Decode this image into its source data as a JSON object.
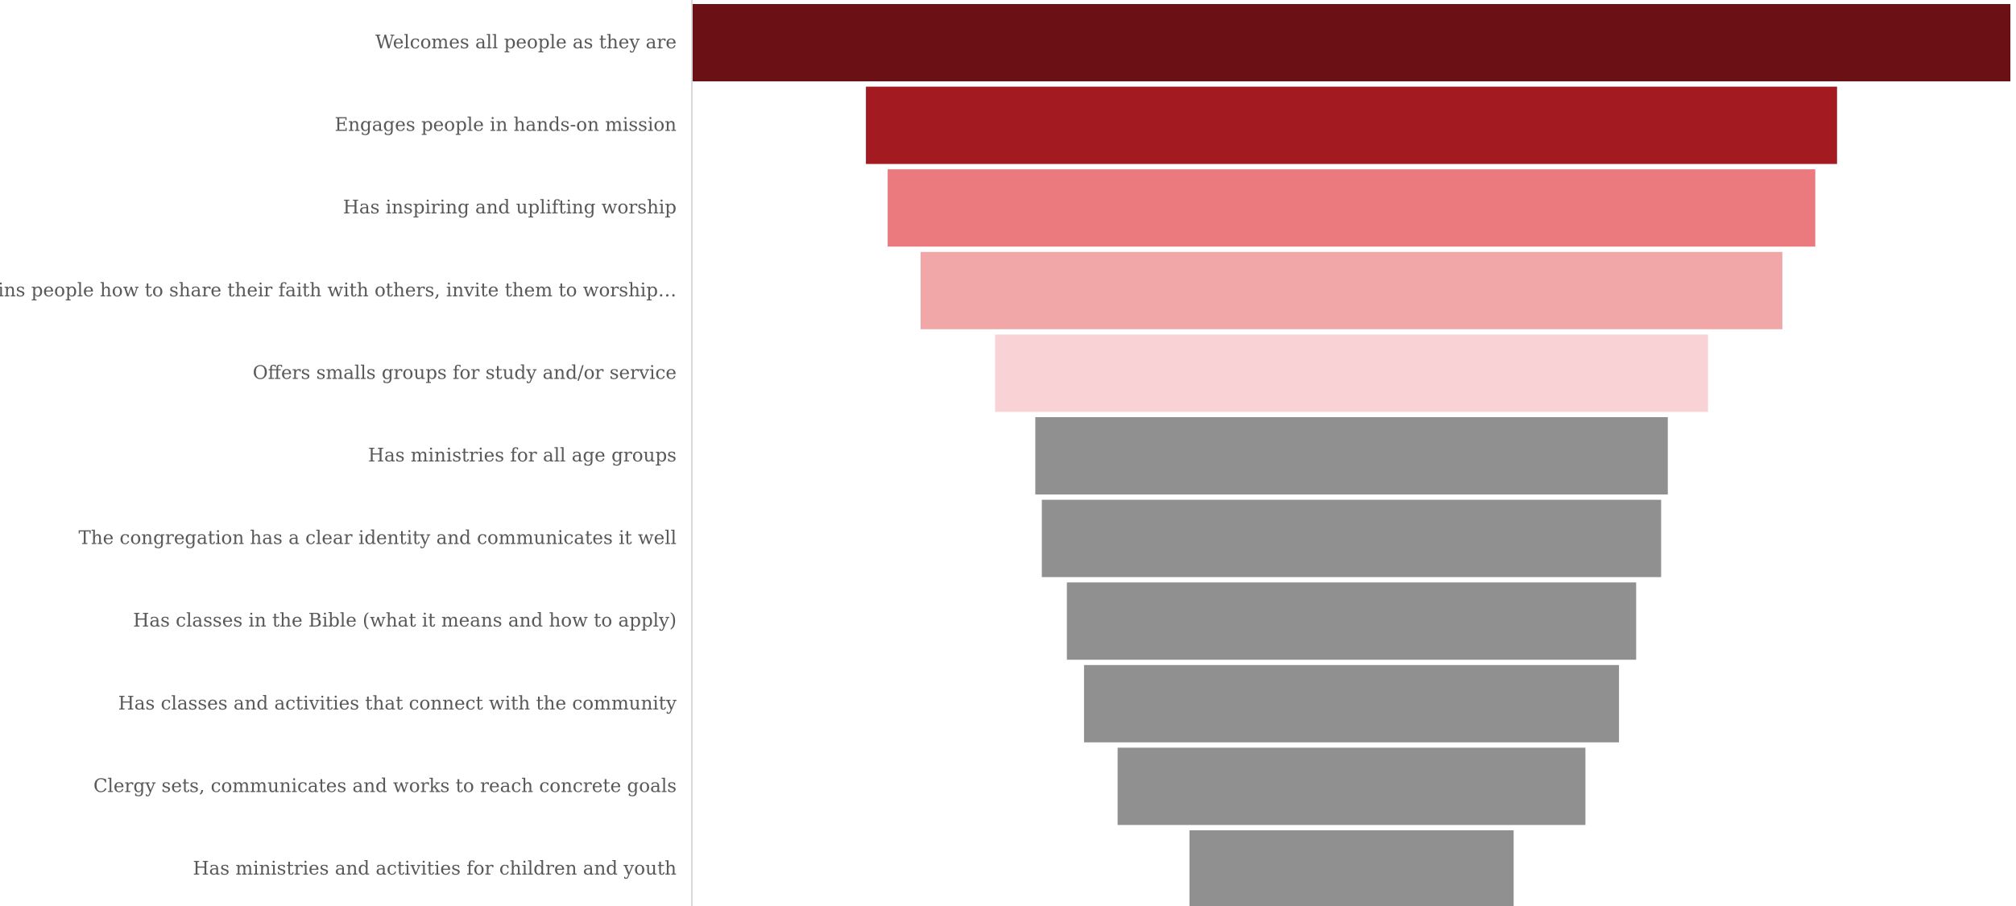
{
  "chart_data": {
    "type": "bar",
    "subtype": "funnel",
    "orientation": "horizontal",
    "title": "",
    "xlabel": "",
    "ylabel": "",
    "categories": [
      "Welcomes all people as they are",
      "Engages people in hands-on mission",
      "Has inspiring and uplifting worship",
      "Trains people how to share their faith with others, invite them to worship…",
      "Offers smalls groups for study and/or service",
      "Has ministries for all age groups",
      "The congregation has a clear identity and communicates it well",
      "Has classes in the Bible (what it means and how to apply)",
      "Has classes and activities that connect with the community",
      "Clergy sets, communicates and works to reach concrete goals",
      "Has ministries and activities for children and youth"
    ],
    "values": [
      100,
      73.7,
      70.4,
      65.4,
      54.1,
      48.0,
      47.0,
      43.2,
      40.6,
      35.5,
      24.6
    ],
    "colors": [
      "#6b1116",
      "#a31a21",
      "#ea7a7d",
      "#f1a6a8",
      "#f8d2d5",
      "#909090",
      "#909090",
      "#909090",
      "#909090",
      "#909090",
      "#909090"
    ],
    "xlim": [
      0,
      100
    ],
    "axis_line_color": "#d9d9d9",
    "grid": false,
    "legend": "none"
  }
}
